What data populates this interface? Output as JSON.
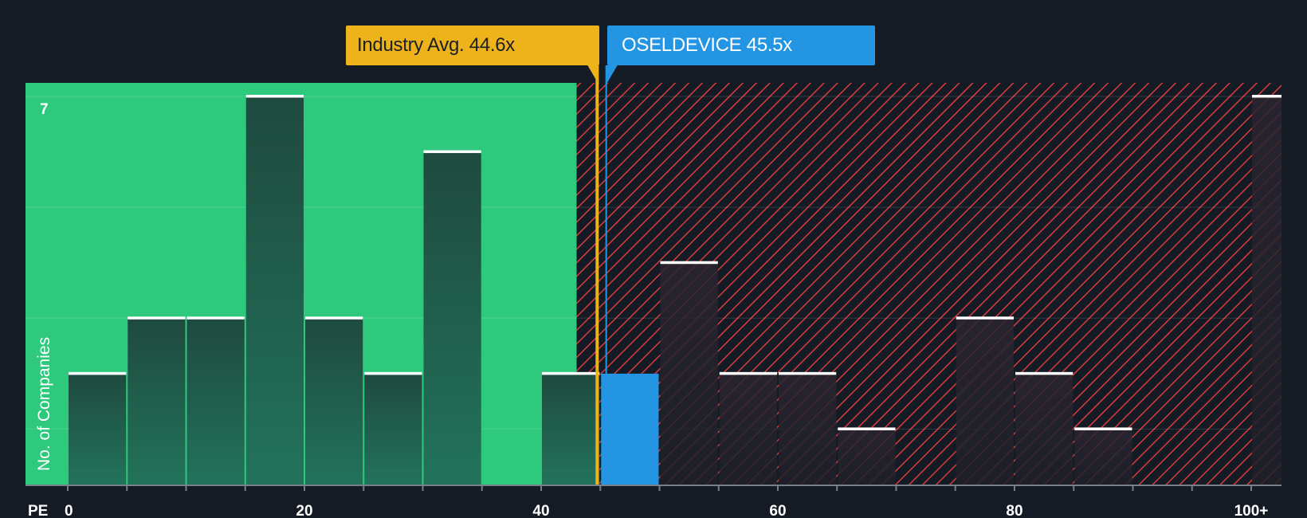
{
  "chart_data": {
    "type": "bar",
    "title": "",
    "xlabel": "PE",
    "ylabel": "No. of Companies",
    "x_ticks": [
      {
        "value": 0,
        "label": "0"
      },
      {
        "value": 20,
        "label": "20"
      },
      {
        "value": 40,
        "label": "40"
      },
      {
        "value": 60,
        "label": "60"
      },
      {
        "value": 80,
        "label": "80"
      },
      {
        "value": 100,
        "label": "100+"
      }
    ],
    "y_ticks": [
      {
        "value": 7,
        "label": "7"
      }
    ],
    "xlim": [
      -3.5,
      103
    ],
    "ylim": [
      0,
      7.25
    ],
    "bin_width": 5,
    "bins": [
      {
        "start": 0,
        "end": 5,
        "count": 2
      },
      {
        "start": 5,
        "end": 10,
        "count": 3
      },
      {
        "start": 10,
        "end": 15,
        "count": 3
      },
      {
        "start": 15,
        "end": 20,
        "count": 7
      },
      {
        "start": 20,
        "end": 25,
        "count": 3
      },
      {
        "start": 25,
        "end": 30,
        "count": 2
      },
      {
        "start": 30,
        "end": 35,
        "count": 6
      },
      {
        "start": 40,
        "end": 45,
        "count": 2
      },
      {
        "start": 45,
        "end": 50,
        "count": 2,
        "highlight": true
      },
      {
        "start": 50,
        "end": 55,
        "count": 4
      },
      {
        "start": 55,
        "end": 60,
        "count": 2
      },
      {
        "start": 60,
        "end": 65,
        "count": 2
      },
      {
        "start": 65,
        "end": 70,
        "count": 1
      },
      {
        "start": 75,
        "end": 80,
        "count": 3
      },
      {
        "start": 80,
        "end": 85,
        "count": 2
      },
      {
        "start": 85,
        "end": 90,
        "count": 1
      },
      {
        "start": 100,
        "end": 105,
        "count": 7
      }
    ],
    "fair_region_end": 43,
    "industry_avg": {
      "label": "Industry Avg.",
      "value": 44.6,
      "value_label": "44.6x"
    },
    "company": {
      "label": "OSELDEVICE",
      "value": 45.5,
      "value_label": "45.5x"
    },
    "colors": {
      "background": "#151b24",
      "fair_zone": "#2fc97e",
      "bar_in_zone": "#1f4e41",
      "bar_in_zone_bottom": "#22735a",
      "bar_overvalued": "#27262f",
      "overvalued_hatch": "#d83c3c",
      "highlight_bar": "#2395e3",
      "industry_line": "#eeb31b",
      "company_line": "#2395e3",
      "axis": "#7a7f87",
      "text": "#ffffff"
    }
  }
}
